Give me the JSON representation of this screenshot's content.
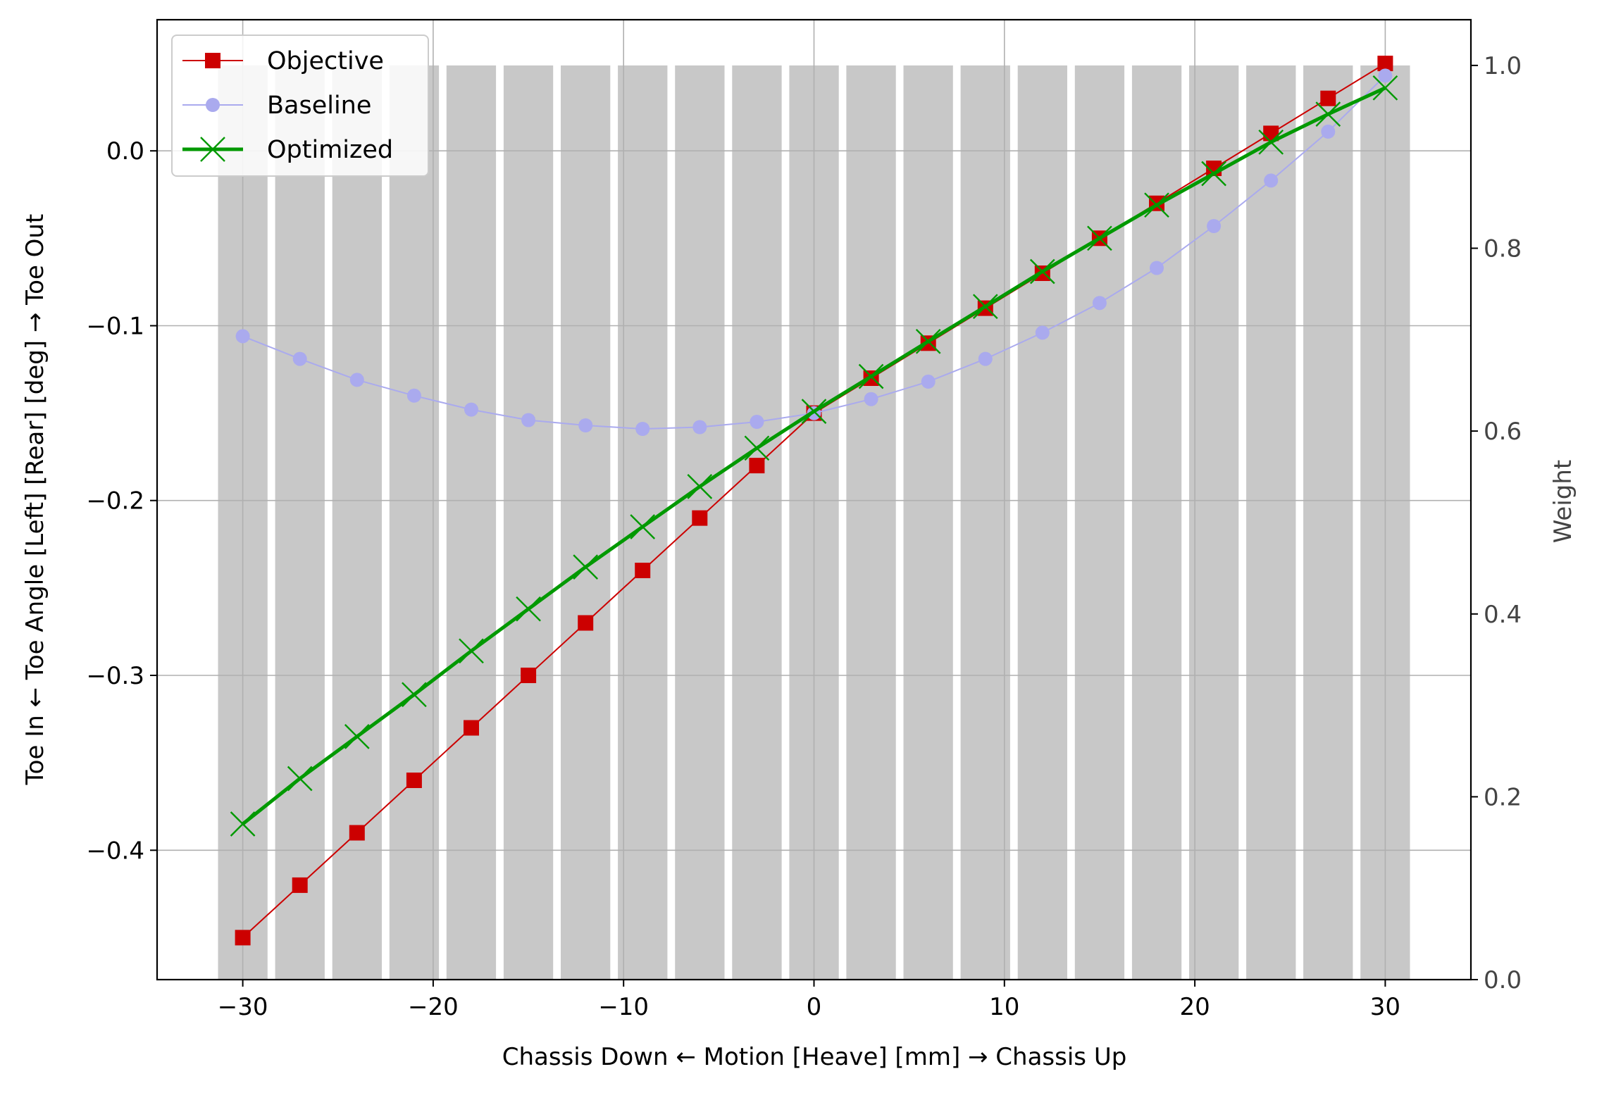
{
  "chart_data": {
    "type": "line",
    "xlabel": "Chassis Down ← Motion [Heave] [mm] → Chassis Up",
    "ylabel": "Toe In ← Toe Angle [Left] [Rear] [deg] → Toe Out",
    "y2label": "Weight",
    "xlim": [
      -34.5,
      34.5
    ],
    "ylim": [
      -0.474,
      0.075
    ],
    "y2lim": [
      0.0,
      1.05
    ],
    "xticks": [
      -30,
      -20,
      -10,
      0,
      10,
      20,
      30
    ],
    "xtick_labels": [
      "−30",
      "−20",
      "−10",
      "0",
      "10",
      "20",
      "30"
    ],
    "yticks": [
      0.0,
      -0.1,
      -0.2,
      -0.3,
      -0.4
    ],
    "ytick_labels": [
      "0.0",
      "−0.1",
      "−0.2",
      "−0.3",
      "−0.4"
    ],
    "y2ticks": [
      0.0,
      0.2,
      0.4,
      0.6,
      0.8,
      1.0
    ],
    "y2tick_labels": [
      "0.0",
      "0.2",
      "0.4",
      "0.6",
      "0.8",
      "1.0"
    ],
    "grid": true,
    "legend_position": "upper-left",
    "weights": {
      "x": [
        -30,
        -27,
        -24,
        -21,
        -18,
        -15,
        -12,
        -9,
        -6,
        -3,
        0,
        3,
        6,
        9,
        12,
        15,
        18,
        21,
        24,
        27,
        30
      ],
      "values": [
        1,
        1,
        1,
        1,
        1,
        1,
        1,
        1,
        1,
        1,
        1,
        1,
        1,
        1,
        1,
        1,
        1,
        1,
        1,
        1,
        1
      ],
      "color": "#c8c8c8"
    },
    "series": [
      {
        "name": "Objective",
        "color": "#cc0000",
        "marker": "square",
        "x": [
          -30,
          -27,
          -24,
          -21,
          -18,
          -15,
          -12,
          -9,
          -6,
          -3,
          0,
          3,
          6,
          9,
          12,
          15,
          18,
          21,
          24,
          27,
          30
        ],
        "values": [
          -0.45,
          -0.42,
          -0.39,
          -0.36,
          -0.33,
          -0.3,
          -0.27,
          -0.24,
          -0.21,
          -0.18,
          -0.15,
          -0.13,
          -0.11,
          -0.09,
          -0.07,
          -0.05,
          -0.03,
          -0.01,
          0.01,
          0.03,
          0.05
        ]
      },
      {
        "name": "Baseline",
        "color": "#aaaaee",
        "marker": "circle",
        "x": [
          -30,
          -27,
          -24,
          -21,
          -18,
          -15,
          -12,
          -9,
          -6,
          -3,
          0,
          3,
          6,
          9,
          12,
          15,
          18,
          21,
          24,
          27,
          30
        ],
        "values": [
          -0.106,
          -0.119,
          -0.131,
          -0.14,
          -0.148,
          -0.154,
          -0.157,
          -0.159,
          -0.158,
          -0.155,
          -0.15,
          -0.142,
          -0.132,
          -0.119,
          -0.104,
          -0.087,
          -0.067,
          -0.043,
          -0.017,
          0.011,
          0.043
        ]
      },
      {
        "name": "Optimized",
        "color": "#009900",
        "marker": "x",
        "x": [
          -30,
          -27,
          -24,
          -21,
          -18,
          -15,
          -12,
          -9,
          -6,
          -3,
          0,
          3,
          6,
          9,
          12,
          15,
          18,
          21,
          24,
          27,
          30
        ],
        "values": [
          -0.385,
          -0.359,
          -0.335,
          -0.311,
          -0.286,
          -0.262,
          -0.238,
          -0.215,
          -0.192,
          -0.17,
          -0.149,
          -0.129,
          -0.109,
          -0.089,
          -0.069,
          -0.05,
          -0.031,
          -0.013,
          0.005,
          0.021,
          0.036
        ]
      }
    ]
  }
}
